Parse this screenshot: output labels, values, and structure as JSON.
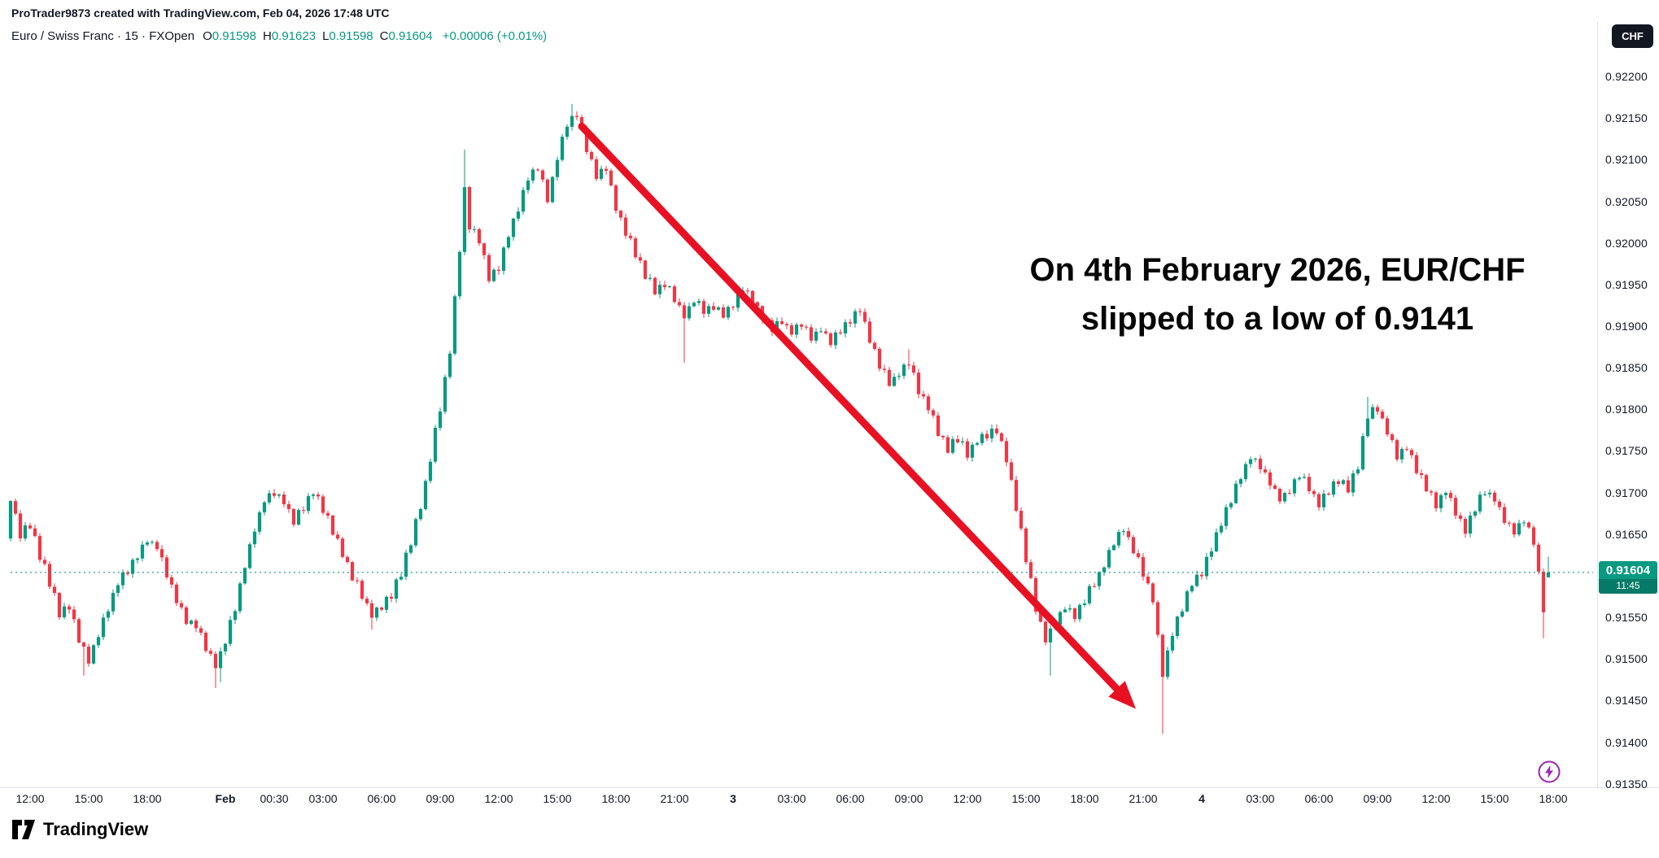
{
  "attribution": "ProTrader9873 created with TradingView.com, Feb 04, 2026 17:48 UTC",
  "header": {
    "title": "Euro / Swiss Franc · 15 · FXOpen",
    "ohlc": [
      {
        "label": "O",
        "value": "0.91598"
      },
      {
        "label": "H",
        "value": "0.91623"
      },
      {
        "label": "L",
        "value": "0.91598"
      },
      {
        "label": "C",
        "value": "0.91604"
      }
    ],
    "change": "+0.00006 (+0.01%)"
  },
  "currency_button": "CHF",
  "annotation": {
    "line1": "On 4th February 2026, EUR/CHF",
    "line2": "slipped to a low of 0.9141"
  },
  "price_line": {
    "price": "0.91604",
    "countdown": "11:45"
  },
  "logo": {
    "text": "TradingView"
  },
  "colors": {
    "up": "#089981",
    "down": "#f23645",
    "arrow": "#e81123",
    "axis_text": "#131722",
    "border": "#e0e3eb",
    "badge": "#089981",
    "flash_icon": "#9c27b0"
  },
  "chart_data": {
    "type": "candlestick",
    "symbol": "EUR/CHF",
    "interval_minutes": 15,
    "source": "FXOpen",
    "up_color": "#089981",
    "down_color": "#f23645",
    "price_axis": {
      "max": 0.922,
      "min": 0.9135,
      "labels": [
        "0.92200",
        "0.92150",
        "0.92100",
        "0.92050",
        "0.92000",
        "0.91950",
        "0.91900",
        "0.91850",
        "0.91800",
        "0.91750",
        "0.91700",
        "0.91650",
        "0.91600",
        "0.91550",
        "0.91500",
        "0.91450",
        "0.91400",
        "0.91350"
      ]
    },
    "time_axis": [
      {
        "label": "12:00",
        "idx": 4
      },
      {
        "label": "15:00",
        "idx": 16
      },
      {
        "label": "18:00",
        "idx": 28
      },
      {
        "label": "Feb",
        "idx": 44,
        "day": true
      },
      {
        "label": "00:30",
        "idx": 54
      },
      {
        "label": "03:00",
        "idx": 64
      },
      {
        "label": "06:00",
        "idx": 76
      },
      {
        "label": "09:00",
        "idx": 88
      },
      {
        "label": "12:00",
        "idx": 100
      },
      {
        "label": "15:00",
        "idx": 112
      },
      {
        "label": "18:00",
        "idx": 124
      },
      {
        "label": "21:00",
        "idx": 136
      },
      {
        "label": "3",
        "idx": 148,
        "day": true
      },
      {
        "label": "03:00",
        "idx": 160
      },
      {
        "label": "06:00",
        "idx": 172
      },
      {
        "label": "09:00",
        "idx": 184
      },
      {
        "label": "12:00",
        "idx": 196
      },
      {
        "label": "15:00",
        "idx": 208
      },
      {
        "label": "18:00",
        "idx": 220
      },
      {
        "label": "21:00",
        "idx": 232
      },
      {
        "label": "4",
        "idx": 244,
        "day": true
      },
      {
        "label": "03:00",
        "idx": 256
      },
      {
        "label": "06:00",
        "idx": 268
      },
      {
        "label": "09:00",
        "idx": 280
      },
      {
        "label": "12:00",
        "idx": 292
      },
      {
        "label": "15:00",
        "idx": 304
      },
      {
        "label": "18:00",
        "idx": 316
      }
    ],
    "candle_count": 316,
    "current_price": 0.91604,
    "keyframes": [
      [
        0,
        0.91695
      ],
      [
        2,
        0.9165
      ],
      [
        4,
        0.91662
      ],
      [
        6,
        0.91625
      ],
      [
        8,
        0.91592
      ],
      [
        10,
        0.91555
      ],
      [
        12,
        0.91562
      ],
      [
        14,
        0.91522
      ],
      [
        16,
        0.91497
      ],
      [
        18,
        0.91532
      ],
      [
        20,
        0.91562
      ],
      [
        22,
        0.91592
      ],
      [
        24,
        0.91605
      ],
      [
        26,
        0.91625
      ],
      [
        28,
        0.91642
      ],
      [
        30,
        0.91635
      ],
      [
        32,
        0.916
      ],
      [
        34,
        0.91572
      ],
      [
        36,
        0.91548
      ],
      [
        38,
        0.9154
      ],
      [
        40,
        0.91512
      ],
      [
        42,
        0.91492
      ],
      [
        43,
        0.91505
      ],
      [
        44,
        0.91522
      ],
      [
        46,
        0.91562
      ],
      [
        48,
        0.91612
      ],
      [
        50,
        0.91655
      ],
      [
        52,
        0.9169
      ],
      [
        54,
        0.91702
      ],
      [
        56,
        0.91688
      ],
      [
        58,
        0.91665
      ],
      [
        60,
        0.91682
      ],
      [
        62,
        0.917
      ],
      [
        64,
        0.9168
      ],
      [
        66,
        0.91655
      ],
      [
        68,
        0.91625
      ],
      [
        70,
        0.916
      ],
      [
        72,
        0.91578
      ],
      [
        74,
        0.91552
      ],
      [
        76,
        0.91562
      ],
      [
        78,
        0.91578
      ],
      [
        80,
        0.91602
      ],
      [
        82,
        0.91642
      ],
      [
        84,
        0.91682
      ],
      [
        86,
        0.91742
      ],
      [
        88,
        0.91802
      ],
      [
        90,
        0.91872
      ],
      [
        92,
        0.91992
      ],
      [
        93,
        0.92062
      ],
      [
        94,
        0.92022
      ],
      [
        96,
        0.92002
      ],
      [
        98,
        0.91958
      ],
      [
        100,
        0.91972
      ],
      [
        102,
        0.92012
      ],
      [
        104,
        0.92042
      ],
      [
        106,
        0.92078
      ],
      [
        108,
        0.92092
      ],
      [
        110,
        0.92052
      ],
      [
        112,
        0.92102
      ],
      [
        114,
        0.92142
      ],
      [
        116,
        0.92155
      ],
      [
        118,
        0.92112
      ],
      [
        120,
        0.92082
      ],
      [
        122,
        0.92092
      ],
      [
        124,
        0.92042
      ],
      [
        126,
        0.92012
      ],
      [
        128,
        0.91988
      ],
      [
        130,
        0.91962
      ],
      [
        132,
        0.91942
      ],
      [
        134,
        0.91952
      ],
      [
        136,
        0.91932
      ],
      [
        138,
        0.91912
      ],
      [
        140,
        0.91932
      ],
      [
        142,
        0.91918
      ],
      [
        144,
        0.91922
      ],
      [
        146,
        0.91912
      ],
      [
        148,
        0.91926
      ],
      [
        150,
        0.91946
      ],
      [
        152,
        0.91932
      ],
      [
        154,
        0.91912
      ],
      [
        156,
        0.91896
      ],
      [
        158,
        0.91906
      ],
      [
        160,
        0.91892
      ],
      [
        162,
        0.91902
      ],
      [
        164,
        0.91886
      ],
      [
        166,
        0.91896
      ],
      [
        168,
        0.91882
      ],
      [
        170,
        0.91896
      ],
      [
        172,
        0.91906
      ],
      [
        174,
        0.91922
      ],
      [
        176,
        0.91882
      ],
      [
        178,
        0.91852
      ],
      [
        180,
        0.91832
      ],
      [
        182,
        0.91842
      ],
      [
        184,
        0.91856
      ],
      [
        186,
        0.91822
      ],
      [
        188,
        0.91802
      ],
      [
        190,
        0.91772
      ],
      [
        192,
        0.91752
      ],
      [
        194,
        0.91766
      ],
      [
        196,
        0.91746
      ],
      [
        198,
        0.91762
      ],
      [
        202,
        0.91776
      ],
      [
        204,
        0.91742
      ],
      [
        206,
        0.91682
      ],
      [
        208,
        0.91622
      ],
      [
        210,
        0.91562
      ],
      [
        212,
        0.91522
      ],
      [
        214,
        0.91546
      ],
      [
        216,
        0.91562
      ],
      [
        218,
        0.91552
      ],
      [
        220,
        0.91572
      ],
      [
        222,
        0.91592
      ],
      [
        224,
        0.91612
      ],
      [
        226,
        0.91642
      ],
      [
        228,
        0.91656
      ],
      [
        230,
        0.91632
      ],
      [
        232,
        0.91602
      ],
      [
        234,
        0.91572
      ],
      [
        236,
        0.91482
      ],
      [
        238,
        0.91532
      ],
      [
        240,
        0.91562
      ],
      [
        242,
        0.91592
      ],
      [
        244,
        0.91602
      ],
      [
        246,
        0.91632
      ],
      [
        248,
        0.91662
      ],
      [
        250,
        0.91692
      ],
      [
        252,
        0.91722
      ],
      [
        254,
        0.91742
      ],
      [
        256,
        0.91732
      ],
      [
        258,
        0.91712
      ],
      [
        260,
        0.91692
      ],
      [
        262,
        0.91702
      ],
      [
        264,
        0.91722
      ],
      [
        266,
        0.91706
      ],
      [
        268,
        0.91686
      ],
      [
        270,
        0.91702
      ],
      [
        272,
        0.91716
      ],
      [
        274,
        0.91702
      ],
      [
        276,
        0.91732
      ],
      [
        278,
        0.91792
      ],
      [
        280,
        0.91802
      ],
      [
        282,
        0.91772
      ],
      [
        284,
        0.91742
      ],
      [
        286,
        0.91756
      ],
      [
        288,
        0.91726
      ],
      [
        290,
        0.91706
      ],
      [
        292,
        0.91686
      ],
      [
        294,
        0.91702
      ],
      [
        296,
        0.91676
      ],
      [
        298,
        0.91656
      ],
      [
        300,
        0.91682
      ],
      [
        302,
        0.91702
      ],
      [
        304,
        0.91692
      ],
      [
        306,
        0.91666
      ],
      [
        308,
        0.91652
      ],
      [
        310,
        0.91666
      ],
      [
        312,
        0.91642
      ],
      [
        313,
        0.91602
      ],
      [
        314,
        0.91562
      ],
      [
        315,
        0.91604
      ]
    ],
    "spikes_low": [
      {
        "idx": 15,
        "price": 0.9148
      },
      {
        "idx": 42,
        "price": 0.91465
      },
      {
        "idx": 43,
        "price": 0.91472
      },
      {
        "idx": 74,
        "price": 0.91535
      },
      {
        "idx": 138,
        "price": 0.91856
      },
      {
        "idx": 213,
        "price": 0.9148
      },
      {
        "idx": 236,
        "price": 0.9141
      },
      {
        "idx": 314,
        "price": 0.91525
      }
    ],
    "spikes_high": [
      {
        "idx": 93,
        "price": 0.92112
      },
      {
        "idx": 115,
        "price": 0.92167
      },
      {
        "idx": 116,
        "price": 0.92158
      },
      {
        "idx": 184,
        "price": 0.91872
      },
      {
        "idx": 202,
        "price": 0.91782
      },
      {
        "idx": 278,
        "price": 0.91815
      }
    ],
    "last_candle": {
      "o": 0.91598,
      "h": 0.91623,
      "l": 0.91598,
      "c": 0.91604
    },
    "noise": 6e-05,
    "wick": 5e-05,
    "arrow": {
      "from": {
        "idx": 117,
        "price": 0.9214
      },
      "to": {
        "idx": 230.5,
        "price": 0.9144
      },
      "color": "#e81123"
    }
  }
}
